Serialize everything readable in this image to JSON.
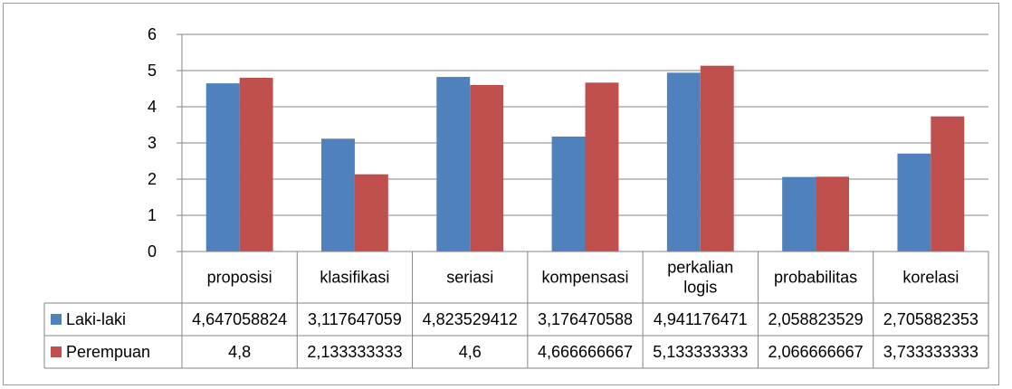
{
  "chart_data": {
    "type": "bar",
    "categories": [
      "proposisi",
      "klasifikasi",
      "seriasi",
      "kompensasi",
      "perkalian logis",
      "probabilitas",
      "korelasi"
    ],
    "category_lines": [
      [
        "proposisi"
      ],
      [
        "klasifikasi"
      ],
      [
        "seriasi"
      ],
      [
        "kompensasi"
      ],
      [
        "perkalian",
        "logis"
      ],
      [
        "probabilitas"
      ],
      [
        "korelasi"
      ]
    ],
    "series": [
      {
        "name": "Laki-laki",
        "color": "#4f81bd",
        "values": [
          4.647058824,
          3.117647059,
          4.823529412,
          3.176470588,
          4.941176471,
          2.058823529,
          2.705882353
        ],
        "labels": [
          "4,647058824",
          "3,117647059",
          "4,823529412",
          "3,176470588",
          "4,941176471",
          "2,058823529",
          "2,705882353"
        ]
      },
      {
        "name": "Perempuan",
        "color": "#c0504d",
        "values": [
          4.8,
          2.133333333,
          4.6,
          4.666666667,
          5.133333333,
          2.066666667,
          3.733333333
        ],
        "labels": [
          "4,8",
          "2,133333333",
          "4,6",
          "4,666666667",
          "5,133333333",
          "2,066666667",
          "3,733333333"
        ]
      }
    ],
    "ylim": [
      0,
      6
    ],
    "yticks": [
      "0",
      "1",
      "2",
      "3",
      "4",
      "5",
      "6"
    ],
    "grid": true,
    "legend": "data-table"
  }
}
